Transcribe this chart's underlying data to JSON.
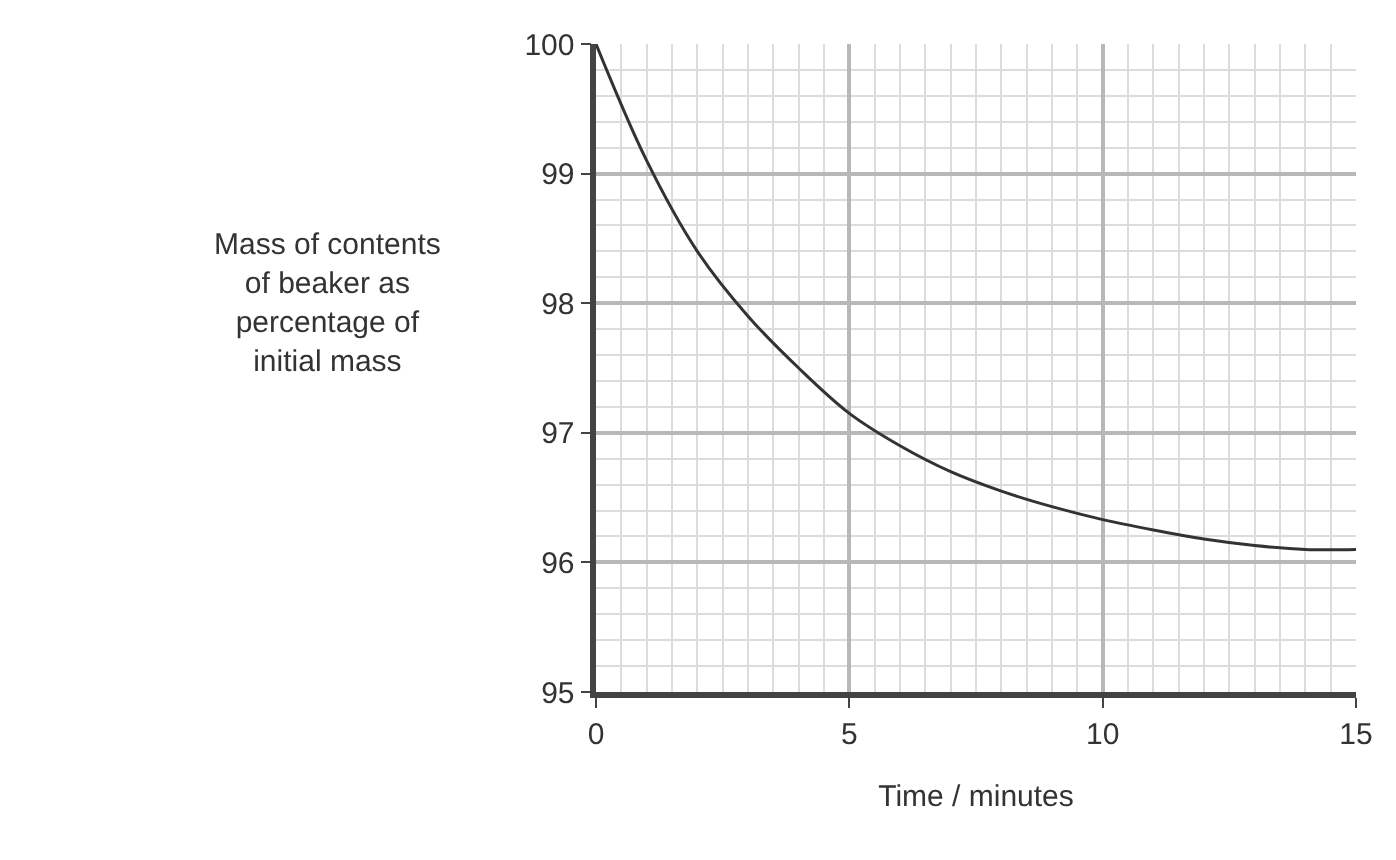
{
  "chart_data": {
    "type": "line",
    "xlabel": "Time / minutes",
    "ylabel": "Mass of contents\nof beaker as\npercentage of\ninitial mass",
    "x": [
      0,
      1,
      2,
      3,
      4,
      5,
      6,
      7,
      8,
      9,
      10,
      11,
      12,
      13,
      14,
      15
    ],
    "series": [
      {
        "color": "#333333",
        "values": [
          100,
          99.1,
          98.4,
          97.9,
          97.5,
          97.15,
          96.9,
          96.7,
          96.55,
          96.43,
          96.33,
          96.25,
          96.18,
          96.13,
          96.1,
          96.1
        ]
      }
    ],
    "xlim": [
      0,
      15
    ],
    "xticks": [
      0,
      5,
      10,
      15
    ],
    "ylim": [
      95,
      100
    ],
    "yticks": [
      95,
      96,
      97,
      98,
      99,
      100
    ],
    "grid": true,
    "marker": "none",
    "line_style": "solid"
  }
}
